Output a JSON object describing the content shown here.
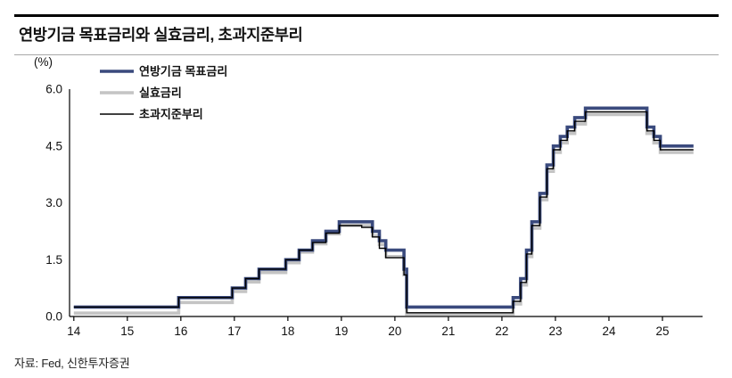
{
  "header": {
    "title": "연방기금 목표금리와 실효금리, 초과지준부리"
  },
  "footer": {
    "source": "자료: Fed, 신한투자증권"
  },
  "chart_data": {
    "type": "line",
    "subtype": "step-after",
    "title": "연방기금 목표금리와 실효금리, 초과지준부리",
    "unit_label": "(%)",
    "xlabel": "",
    "ylabel": "(%)",
    "x_ticks": [
      14,
      15,
      16,
      17,
      18,
      19,
      20,
      21,
      22,
      23,
      24,
      25
    ],
    "y_ticks": [
      0.0,
      1.5,
      3.0,
      4.5,
      6.0
    ],
    "xlim": [
      13.92,
      25.75
    ],
    "ylim": [
      0,
      6
    ],
    "grid": false,
    "legend_position": "top-left",
    "axis_color": "#000000",
    "series": [
      {
        "name": "연방기금 목표금리",
        "color": "#3a4a7d",
        "width": 3.6,
        "zorder": 2,
        "points": [
          [
            14,
            0.25
          ],
          [
            15.96,
            0.5
          ],
          [
            16.96,
            0.75
          ],
          [
            17.21,
            1.0
          ],
          [
            17.46,
            1.25
          ],
          [
            17.96,
            1.5
          ],
          [
            18.21,
            1.75
          ],
          [
            18.46,
            2.0
          ],
          [
            18.71,
            2.25
          ],
          [
            18.96,
            2.5
          ],
          [
            19.58,
            2.25
          ],
          [
            19.71,
            2.0
          ],
          [
            19.83,
            1.75
          ],
          [
            20.17,
            1.25
          ],
          [
            20.22,
            0.25
          ],
          [
            22.21,
            0.5
          ],
          [
            22.35,
            1.0
          ],
          [
            22.46,
            1.75
          ],
          [
            22.56,
            2.5
          ],
          [
            22.71,
            3.25
          ],
          [
            22.84,
            4.0
          ],
          [
            22.96,
            4.5
          ],
          [
            23.09,
            4.75
          ],
          [
            23.22,
            5.0
          ],
          [
            23.36,
            5.25
          ],
          [
            23.56,
            5.5
          ],
          [
            24.71,
            5.0
          ],
          [
            24.84,
            4.75
          ],
          [
            24.96,
            4.5
          ],
          [
            25.58,
            4.5
          ]
        ]
      },
      {
        "name": "실효금리",
        "color": "#c4c4c4",
        "width": 3.6,
        "zorder": 1,
        "points": [
          [
            14,
            0.09
          ],
          [
            15.96,
            0.37
          ],
          [
            16.96,
            0.66
          ],
          [
            17.21,
            0.91
          ],
          [
            17.46,
            1.16
          ],
          [
            17.96,
            1.42
          ],
          [
            18.21,
            1.7
          ],
          [
            18.46,
            1.92
          ],
          [
            18.71,
            2.18
          ],
          [
            18.96,
            2.4
          ],
          [
            19.58,
            2.13
          ],
          [
            19.71,
            1.9
          ],
          [
            19.83,
            1.58
          ],
          [
            20.17,
            1.1
          ],
          [
            20.22,
            0.06
          ],
          [
            22.21,
            0.33
          ],
          [
            22.35,
            0.83
          ],
          [
            22.46,
            1.58
          ],
          [
            22.56,
            2.33
          ],
          [
            22.71,
            3.08
          ],
          [
            22.84,
            3.83
          ],
          [
            22.96,
            4.33
          ],
          [
            23.09,
            4.58
          ],
          [
            23.22,
            4.83
          ],
          [
            23.36,
            5.08
          ],
          [
            23.56,
            5.33
          ],
          [
            24.71,
            4.83
          ],
          [
            24.84,
            4.58
          ],
          [
            24.96,
            4.33
          ],
          [
            25.58,
            4.33
          ]
        ]
      },
      {
        "name": "초과지준부리",
        "color": "#000000",
        "width": 1.4,
        "zorder": 3,
        "points": [
          [
            14,
            0.25
          ],
          [
            15.96,
            0.5
          ],
          [
            16.96,
            0.75
          ],
          [
            17.21,
            1.0
          ],
          [
            17.46,
            1.25
          ],
          [
            17.96,
            1.5
          ],
          [
            18.21,
            1.75
          ],
          [
            18.46,
            1.95
          ],
          [
            18.71,
            2.2
          ],
          [
            18.96,
            2.4
          ],
          [
            19.38,
            2.35
          ],
          [
            19.58,
            2.1
          ],
          [
            19.71,
            1.8
          ],
          [
            19.83,
            1.55
          ],
          [
            20.17,
            1.1
          ],
          [
            20.22,
            0.1
          ],
          [
            22.21,
            0.4
          ],
          [
            22.35,
            0.9
          ],
          [
            22.46,
            1.65
          ],
          [
            22.56,
            2.4
          ],
          [
            22.71,
            3.15
          ],
          [
            22.84,
            3.9
          ],
          [
            22.96,
            4.4
          ],
          [
            23.09,
            4.65
          ],
          [
            23.22,
            4.9
          ],
          [
            23.36,
            5.15
          ],
          [
            23.56,
            5.4
          ],
          [
            24.71,
            4.9
          ],
          [
            24.84,
            4.65
          ],
          [
            24.96,
            4.4
          ],
          [
            25.58,
            4.4
          ]
        ]
      }
    ]
  }
}
